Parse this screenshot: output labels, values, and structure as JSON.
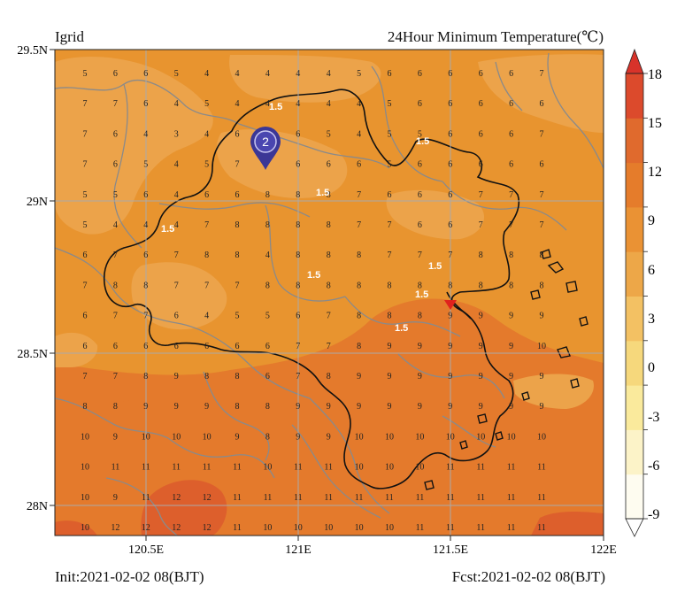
{
  "header": {
    "left": "Igrid",
    "right": "24Hour Minimum Temperature(℃)"
  },
  "footer": {
    "init": "Init:2021-02-02 08(BJT)",
    "fcst": "Fcst:2021-02-02 08(BJT)"
  },
  "axes": {
    "lat_labels": [
      "29.5N",
      "29N",
      "28.5N",
      "28N"
    ],
    "lat_values": [
      29.5,
      29.0,
      28.5,
      28.0
    ],
    "lon_labels": [
      "120.5E",
      "121E",
      "121.5E",
      "122E"
    ],
    "lon_values": [
      120.5,
      121.0,
      121.5,
      122.0
    ],
    "extent": {
      "lon_min": 120.07,
      "lon_max": 122.0,
      "lat_min": 27.9,
      "lat_max": 29.52
    }
  },
  "colorbar": {
    "labels": [
      "18",
      "15",
      "12",
      "9",
      "6",
      "3",
      "0",
      "-3",
      "-6",
      "-9"
    ],
    "colors": [
      "#fefcf0",
      "#fcf3c8",
      "#faea9c",
      "#f6d87c",
      "#f3c163",
      "#eda748",
      "#ea9234",
      "#e57c2b",
      "#e06a2d",
      "#dc4a2c"
    ]
  },
  "marker": {
    "label": "2",
    "color": "#3b3796"
  },
  "station_marker": {
    "color": "#e0221d"
  },
  "contour_labels": [
    "1.5",
    "1.5",
    "1.5",
    "1.5",
    "1.5",
    "1.5",
    "1.5"
  ],
  "grid_values": [
    [
      "5",
      "6",
      "6",
      "5",
      "4",
      "4",
      "4",
      "4",
      "4",
      "5",
      "6",
      "6",
      "6",
      "6",
      "6",
      "7"
    ],
    [
      "7",
      "7",
      "6",
      "4",
      "5",
      "4",
      "4",
      "4",
      "4",
      "4",
      "5",
      "6",
      "6",
      "6",
      "6",
      "6"
    ],
    [
      "7",
      "6",
      "4",
      "3",
      "4",
      "6",
      "7",
      "6",
      "5",
      "4",
      "5",
      "5",
      "6",
      "6",
      "6",
      "7"
    ],
    [
      "7",
      "6",
      "5",
      "4",
      "5",
      "7",
      "7",
      "6",
      "6",
      "6",
      "5",
      "6",
      "6",
      "6",
      "6",
      "6"
    ],
    [
      "5",
      "5",
      "6",
      "4",
      "6",
      "6",
      "8",
      "8",
      "8",
      "7",
      "6",
      "6",
      "6",
      "7",
      "7",
      "7"
    ],
    [
      "5",
      "4",
      "4",
      "4",
      "7",
      "8",
      "8",
      "8",
      "8",
      "7",
      "7",
      "6",
      "6",
      "7",
      "7",
      "7"
    ],
    [
      "6",
      "7",
      "6",
      "7",
      "8",
      "8",
      "4",
      "8",
      "8",
      "8",
      "7",
      "7",
      "7",
      "8",
      "8",
      "8"
    ],
    [
      "7",
      "8",
      "8",
      "7",
      "7",
      "7",
      "8",
      "8",
      "8",
      "8",
      "8",
      "8",
      "8",
      "8",
      "8",
      "8"
    ],
    [
      "6",
      "7",
      "7",
      "6",
      "4",
      "5",
      "5",
      "6",
      "7",
      "8",
      "8",
      "8",
      "9",
      "9",
      "9",
      "9"
    ],
    [
      "6",
      "6",
      "6",
      "6",
      "6",
      "6",
      "6",
      "7",
      "7",
      "8",
      "9",
      "9",
      "9",
      "9",
      "9",
      "10"
    ],
    [
      "7",
      "7",
      "8",
      "9",
      "8",
      "8",
      "6",
      "7",
      "8",
      "9",
      "9",
      "9",
      "9",
      "9",
      "9",
      "9"
    ],
    [
      "8",
      "8",
      "9",
      "9",
      "9",
      "8",
      "8",
      "9",
      "9",
      "9",
      "9",
      "9",
      "9",
      "9",
      "9",
      "9"
    ],
    [
      "10",
      "9",
      "10",
      "10",
      "10",
      "9",
      "8",
      "9",
      "9",
      "10",
      "10",
      "10",
      "10",
      "10",
      "10",
      "10"
    ],
    [
      "10",
      "11",
      "11",
      "11",
      "11",
      "11",
      "10",
      "11",
      "11",
      "10",
      "10",
      "10",
      "11",
      "11",
      "11",
      "11"
    ],
    [
      "10",
      "9",
      "11",
      "12",
      "12",
      "11",
      "11",
      "11",
      "11",
      "11",
      "11",
      "11",
      "11",
      "11",
      "11",
      "11"
    ],
    [
      "10",
      "12",
      "12",
      "12",
      "12",
      "11",
      "10",
      "10",
      "10",
      "10",
      "10",
      "11",
      "11",
      "11",
      "11",
      "11"
    ]
  ]
}
